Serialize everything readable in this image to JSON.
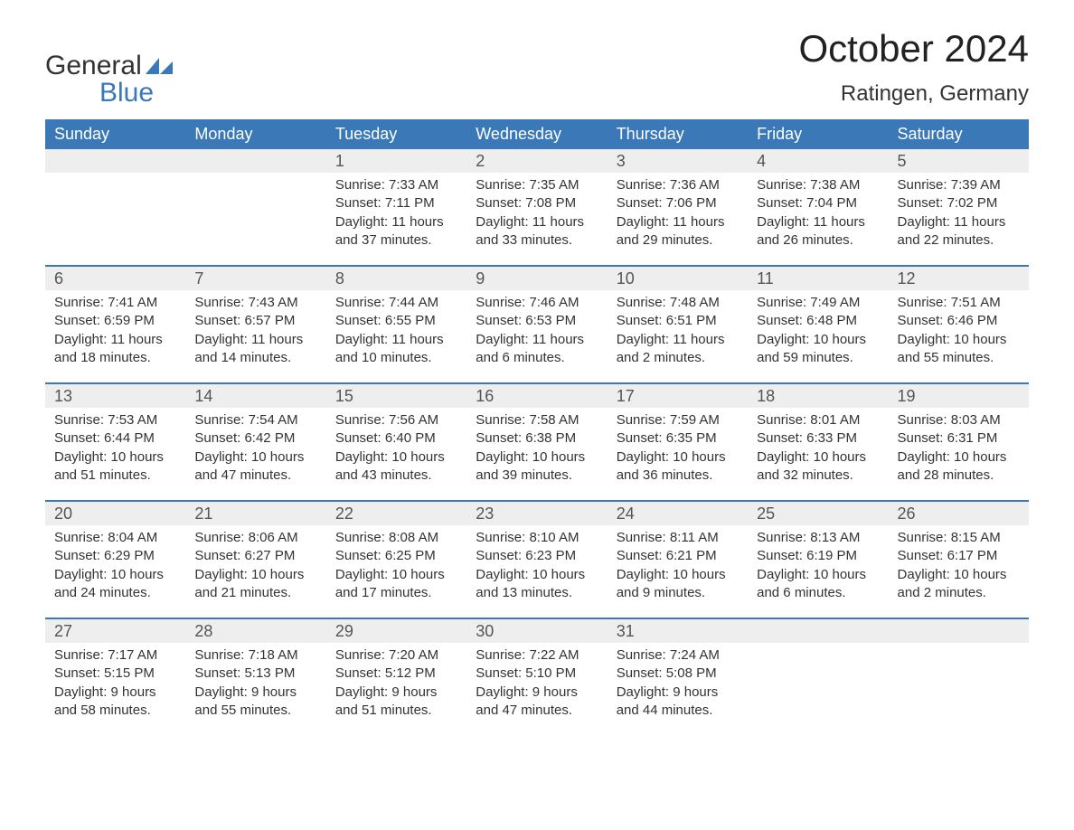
{
  "logo": {
    "text_top": "General",
    "text_bottom": "Blue",
    "flag_color": "#3a78b8"
  },
  "title": "October 2024",
  "location": "Ratingen, Germany",
  "colors": {
    "header_bg": "#3a78b8",
    "header_fg": "#ffffff",
    "daynum_bg": "#eeeeee",
    "daynum_fg": "#555555",
    "week_divider": "#3a78b8",
    "body_text": "#333333",
    "page_bg": "#ffffff"
  },
  "typography": {
    "title_fontsize": 42,
    "location_fontsize": 24,
    "dow_fontsize": 18,
    "daynum_fontsize": 18,
    "body_fontsize": 15
  },
  "days_of_week": [
    "Sunday",
    "Monday",
    "Tuesday",
    "Wednesday",
    "Thursday",
    "Friday",
    "Saturday"
  ],
  "labels": {
    "sunrise": "Sunrise:",
    "sunset": "Sunset:",
    "daylight": "Daylight:"
  },
  "weeks": [
    [
      {
        "day": "",
        "sunrise": "",
        "sunset": "",
        "daylight": ""
      },
      {
        "day": "",
        "sunrise": "",
        "sunset": "",
        "daylight": ""
      },
      {
        "day": "1",
        "sunrise": "7:33 AM",
        "sunset": "7:11 PM",
        "daylight": "11 hours and 37 minutes."
      },
      {
        "day": "2",
        "sunrise": "7:35 AM",
        "sunset": "7:08 PM",
        "daylight": "11 hours and 33 minutes."
      },
      {
        "day": "3",
        "sunrise": "7:36 AM",
        "sunset": "7:06 PM",
        "daylight": "11 hours and 29 minutes."
      },
      {
        "day": "4",
        "sunrise": "7:38 AM",
        "sunset": "7:04 PM",
        "daylight": "11 hours and 26 minutes."
      },
      {
        "day": "5",
        "sunrise": "7:39 AM",
        "sunset": "7:02 PM",
        "daylight": "11 hours and 22 minutes."
      }
    ],
    [
      {
        "day": "6",
        "sunrise": "7:41 AM",
        "sunset": "6:59 PM",
        "daylight": "11 hours and 18 minutes."
      },
      {
        "day": "7",
        "sunrise": "7:43 AM",
        "sunset": "6:57 PM",
        "daylight": "11 hours and 14 minutes."
      },
      {
        "day": "8",
        "sunrise": "7:44 AM",
        "sunset": "6:55 PM",
        "daylight": "11 hours and 10 minutes."
      },
      {
        "day": "9",
        "sunrise": "7:46 AM",
        "sunset": "6:53 PM",
        "daylight": "11 hours and 6 minutes."
      },
      {
        "day": "10",
        "sunrise": "7:48 AM",
        "sunset": "6:51 PM",
        "daylight": "11 hours and 2 minutes."
      },
      {
        "day": "11",
        "sunrise": "7:49 AM",
        "sunset": "6:48 PM",
        "daylight": "10 hours and 59 minutes."
      },
      {
        "day": "12",
        "sunrise": "7:51 AM",
        "sunset": "6:46 PM",
        "daylight": "10 hours and 55 minutes."
      }
    ],
    [
      {
        "day": "13",
        "sunrise": "7:53 AM",
        "sunset": "6:44 PM",
        "daylight": "10 hours and 51 minutes."
      },
      {
        "day": "14",
        "sunrise": "7:54 AM",
        "sunset": "6:42 PM",
        "daylight": "10 hours and 47 minutes."
      },
      {
        "day": "15",
        "sunrise": "7:56 AM",
        "sunset": "6:40 PM",
        "daylight": "10 hours and 43 minutes."
      },
      {
        "day": "16",
        "sunrise": "7:58 AM",
        "sunset": "6:38 PM",
        "daylight": "10 hours and 39 minutes."
      },
      {
        "day": "17",
        "sunrise": "7:59 AM",
        "sunset": "6:35 PM",
        "daylight": "10 hours and 36 minutes."
      },
      {
        "day": "18",
        "sunrise": "8:01 AM",
        "sunset": "6:33 PM",
        "daylight": "10 hours and 32 minutes."
      },
      {
        "day": "19",
        "sunrise": "8:03 AM",
        "sunset": "6:31 PM",
        "daylight": "10 hours and 28 minutes."
      }
    ],
    [
      {
        "day": "20",
        "sunrise": "8:04 AM",
        "sunset": "6:29 PM",
        "daylight": "10 hours and 24 minutes."
      },
      {
        "day": "21",
        "sunrise": "8:06 AM",
        "sunset": "6:27 PM",
        "daylight": "10 hours and 21 minutes."
      },
      {
        "day": "22",
        "sunrise": "8:08 AM",
        "sunset": "6:25 PM",
        "daylight": "10 hours and 17 minutes."
      },
      {
        "day": "23",
        "sunrise": "8:10 AM",
        "sunset": "6:23 PM",
        "daylight": "10 hours and 13 minutes."
      },
      {
        "day": "24",
        "sunrise": "8:11 AM",
        "sunset": "6:21 PM",
        "daylight": "10 hours and 9 minutes."
      },
      {
        "day": "25",
        "sunrise": "8:13 AM",
        "sunset": "6:19 PM",
        "daylight": "10 hours and 6 minutes."
      },
      {
        "day": "26",
        "sunrise": "8:15 AM",
        "sunset": "6:17 PM",
        "daylight": "10 hours and 2 minutes."
      }
    ],
    [
      {
        "day": "27",
        "sunrise": "7:17 AM",
        "sunset": "5:15 PM",
        "daylight": "9 hours and 58 minutes."
      },
      {
        "day": "28",
        "sunrise": "7:18 AM",
        "sunset": "5:13 PM",
        "daylight": "9 hours and 55 minutes."
      },
      {
        "day": "29",
        "sunrise": "7:20 AM",
        "sunset": "5:12 PM",
        "daylight": "9 hours and 51 minutes."
      },
      {
        "day": "30",
        "sunrise": "7:22 AM",
        "sunset": "5:10 PM",
        "daylight": "9 hours and 47 minutes."
      },
      {
        "day": "31",
        "sunrise": "7:24 AM",
        "sunset": "5:08 PM",
        "daylight": "9 hours and 44 minutes."
      },
      {
        "day": "",
        "sunrise": "",
        "sunset": "",
        "daylight": ""
      },
      {
        "day": "",
        "sunrise": "",
        "sunset": "",
        "daylight": ""
      }
    ]
  ]
}
